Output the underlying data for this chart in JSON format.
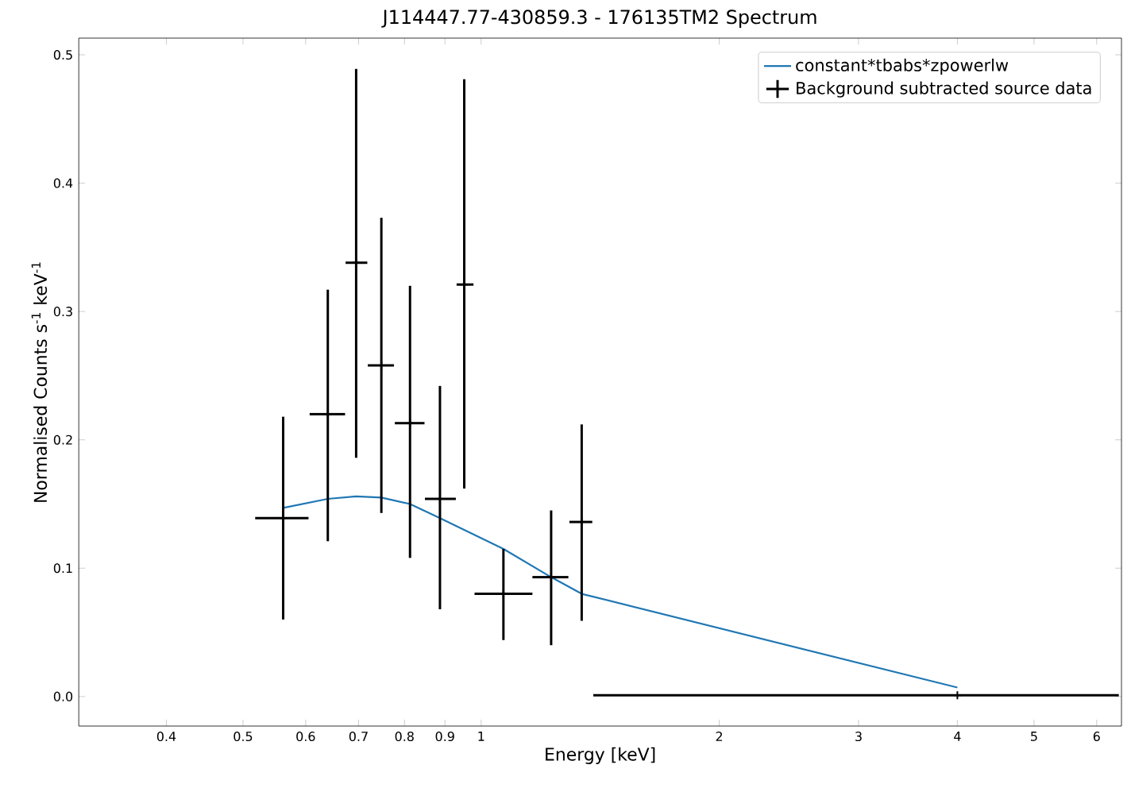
{
  "chart_data": {
    "type": "scatter",
    "title": "J114447.77-430859.3 - 176135TM2 Spectrum",
    "xlabel": "Energy [keV]",
    "ylabel": "Normalised Counts s$^{-1}$ keV$^{-1}$",
    "log": "x",
    "xlim": [
      0.31,
      6.45
    ],
    "ylim": [
      -0.023,
      0.513
    ],
    "xticks": [
      0.4,
      0.5,
      0.6,
      0.7,
      0.8,
      0.9,
      1,
      2,
      3,
      4,
      5,
      6
    ],
    "yticks": [
      {
        "value": 0,
        "label": "0.0"
      },
      0.1,
      0.2,
      0.3,
      0.4,
      0.5
    ],
    "grid": false,
    "legend": "top right",
    "series": [
      {
        "name": "constant*tbabs*zpowerlw",
        "type": "line",
        "marker": "none",
        "color": "#1f77b4",
        "x": [
          0.562,
          0.64,
          0.695,
          0.748,
          0.813,
          0.887,
          1.067,
          1.226,
          1.34,
          4.0
        ],
        "values": [
          0.147,
          0.154,
          0.156,
          0.155,
          0.15,
          0.139,
          0.115,
          0.093,
          0.08,
          0.007
        ]
      },
      {
        "name": "Background subtracted source data",
        "marker": "cross",
        "color": "#000000",
        "x": [
          0.562,
          0.64,
          0.695,
          0.748,
          0.813,
          0.887,
          0.952,
          1.067,
          1.226,
          1.34,
          4.0
        ],
        "values": [
          0.139,
          0.22,
          0.338,
          0.258,
          0.213,
          0.154,
          0.321,
          0.08,
          0.093,
          0.136,
          0.001
        ],
        "xerrors": [
          [
            0.518,
            0.605
          ],
          [
            0.607,
            0.673
          ],
          [
            0.674,
            0.718
          ],
          [
            0.719,
            0.776
          ],
          [
            0.778,
            0.848
          ],
          [
            0.849,
            0.929
          ],
          [
            0.931,
            0.978
          ],
          [
            0.981,
            1.161
          ],
          [
            1.161,
            1.289
          ],
          [
            1.293,
            1.382
          ],
          [
            1.386,
            6.4
          ]
        ],
        "errors": [
          [
            0.06,
            0.218
          ],
          [
            0.121,
            0.317
          ],
          [
            0.186,
            0.489
          ],
          [
            0.143,
            0.373
          ],
          [
            0.108,
            0.32
          ],
          [
            0.068,
            0.242
          ],
          [
            0.162,
            0.481
          ],
          [
            0.044,
            0.115
          ],
          [
            0.04,
            0.145
          ],
          [
            0.059,
            0.212
          ],
          null
        ]
      }
    ]
  }
}
